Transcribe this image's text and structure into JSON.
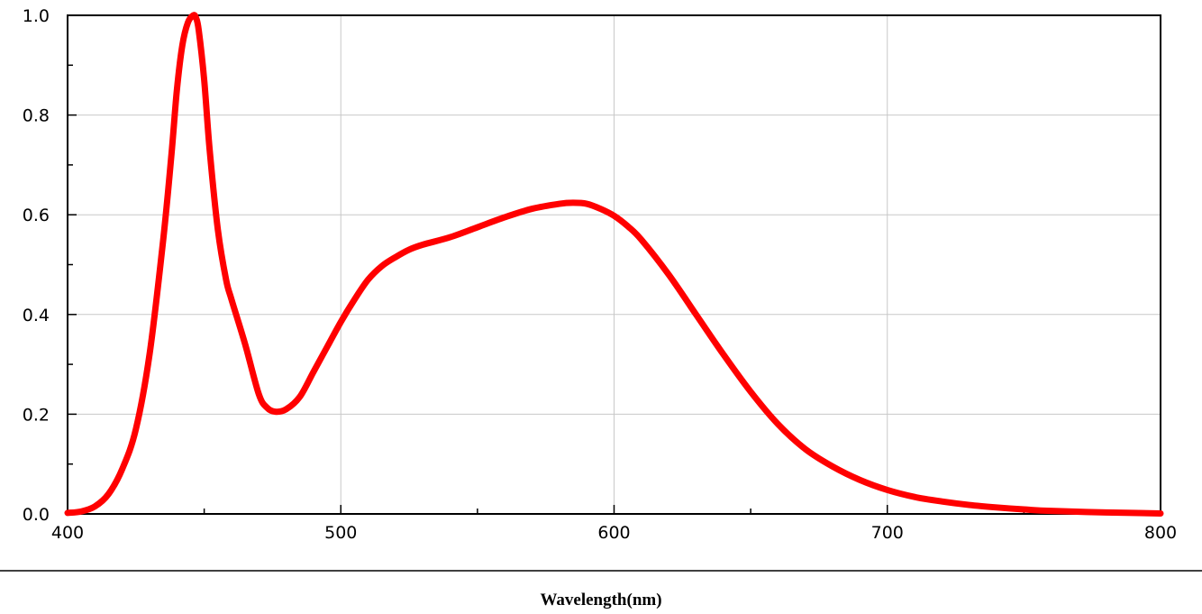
{
  "chart_data": {
    "type": "line",
    "title": "",
    "xlabel": "Wavelength(nm)",
    "ylabel": "",
    "xlim": [
      400,
      800
    ],
    "ylim": [
      0.0,
      1.0
    ],
    "x_ticks": [
      "400",
      "500",
      "600",
      "700",
      "800"
    ],
    "x_tick_values": [
      400,
      500,
      600,
      700,
      800
    ],
    "y_ticks": [
      "0.0",
      "0.2",
      "0.4",
      "0.6",
      "0.8",
      "1.0"
    ],
    "y_tick_values": [
      0.0,
      0.2,
      0.4,
      0.6,
      0.8,
      1.0
    ],
    "grid": true,
    "legend": "none",
    "line_color": "#ff0000",
    "series": [
      {
        "x": [
          400,
          405,
          410,
          415,
          420,
          425,
          430,
          435,
          438,
          440,
          442,
          444,
          446,
          447,
          448,
          450,
          452,
          455,
          458,
          460,
          465,
          470,
          473,
          476,
          480,
          485,
          490,
          495,
          500,
          505,
          510,
          515,
          520,
          525,
          530,
          540,
          550,
          560,
          570,
          580,
          585,
          590,
          595,
          600,
          605,
          610,
          620,
          630,
          640,
          650,
          660,
          670,
          680,
          690,
          700,
          710,
          720,
          730,
          740,
          750,
          760,
          780,
          800
        ],
        "y": [
          0.002,
          0.005,
          0.015,
          0.04,
          0.09,
          0.17,
          0.32,
          0.55,
          0.72,
          0.85,
          0.94,
          0.985,
          1.0,
          0.995,
          0.97,
          0.87,
          0.73,
          0.57,
          0.47,
          0.43,
          0.34,
          0.24,
          0.213,
          0.205,
          0.21,
          0.235,
          0.285,
          0.335,
          0.385,
          0.43,
          0.47,
          0.497,
          0.515,
          0.53,
          0.54,
          0.555,
          0.575,
          0.595,
          0.612,
          0.622,
          0.624,
          0.622,
          0.612,
          0.598,
          0.577,
          0.55,
          0.48,
          0.4,
          0.32,
          0.245,
          0.18,
          0.13,
          0.095,
          0.068,
          0.048,
          0.034,
          0.025,
          0.018,
          0.013,
          0.009,
          0.006,
          0.003,
          0.001
        ]
      }
    ]
  }
}
